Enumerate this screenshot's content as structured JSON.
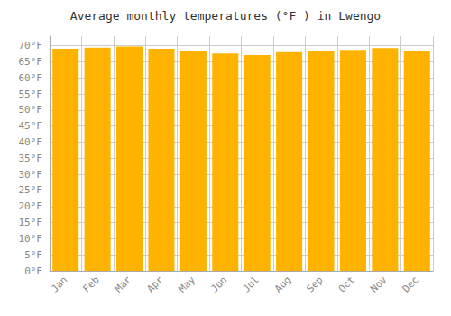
{
  "chart_data": {
    "type": "bar",
    "title": "Average monthly temperatures (°F ) in Lwengo",
    "categories": [
      "Jan",
      "Feb",
      "Mar",
      "Apr",
      "May",
      "Jun",
      "Jul",
      "Aug",
      "Sep",
      "Oct",
      "Nov",
      "Dec"
    ],
    "values": [
      69.1,
      69.4,
      69.8,
      69.1,
      68.5,
      67.6,
      67.1,
      68.0,
      68.2,
      68.7,
      69.3,
      68.4
    ],
    "color": "#FFB300",
    "ylim": [
      0,
      73
    ],
    "yticks": [
      {
        "value": 0,
        "label": "0°F"
      },
      {
        "value": 5,
        "label": "5°F"
      },
      {
        "value": 10,
        "label": "10°F"
      },
      {
        "value": 15,
        "label": "15°F"
      },
      {
        "value": 20,
        "label": "20°F"
      },
      {
        "value": 25,
        "label": "25°F"
      },
      {
        "value": 30,
        "label": "30°F"
      },
      {
        "value": 35,
        "label": "35°F"
      },
      {
        "value": 40,
        "label": "40°F"
      },
      {
        "value": 45,
        "label": "45°F"
      },
      {
        "value": 50,
        "label": "50°F"
      },
      {
        "value": 55,
        "label": "55°F"
      },
      {
        "value": 60,
        "label": "60°F"
      },
      {
        "value": 65,
        "label": "65°F"
      },
      {
        "value": 70,
        "label": "70°F"
      }
    ],
    "grid": true
  }
}
